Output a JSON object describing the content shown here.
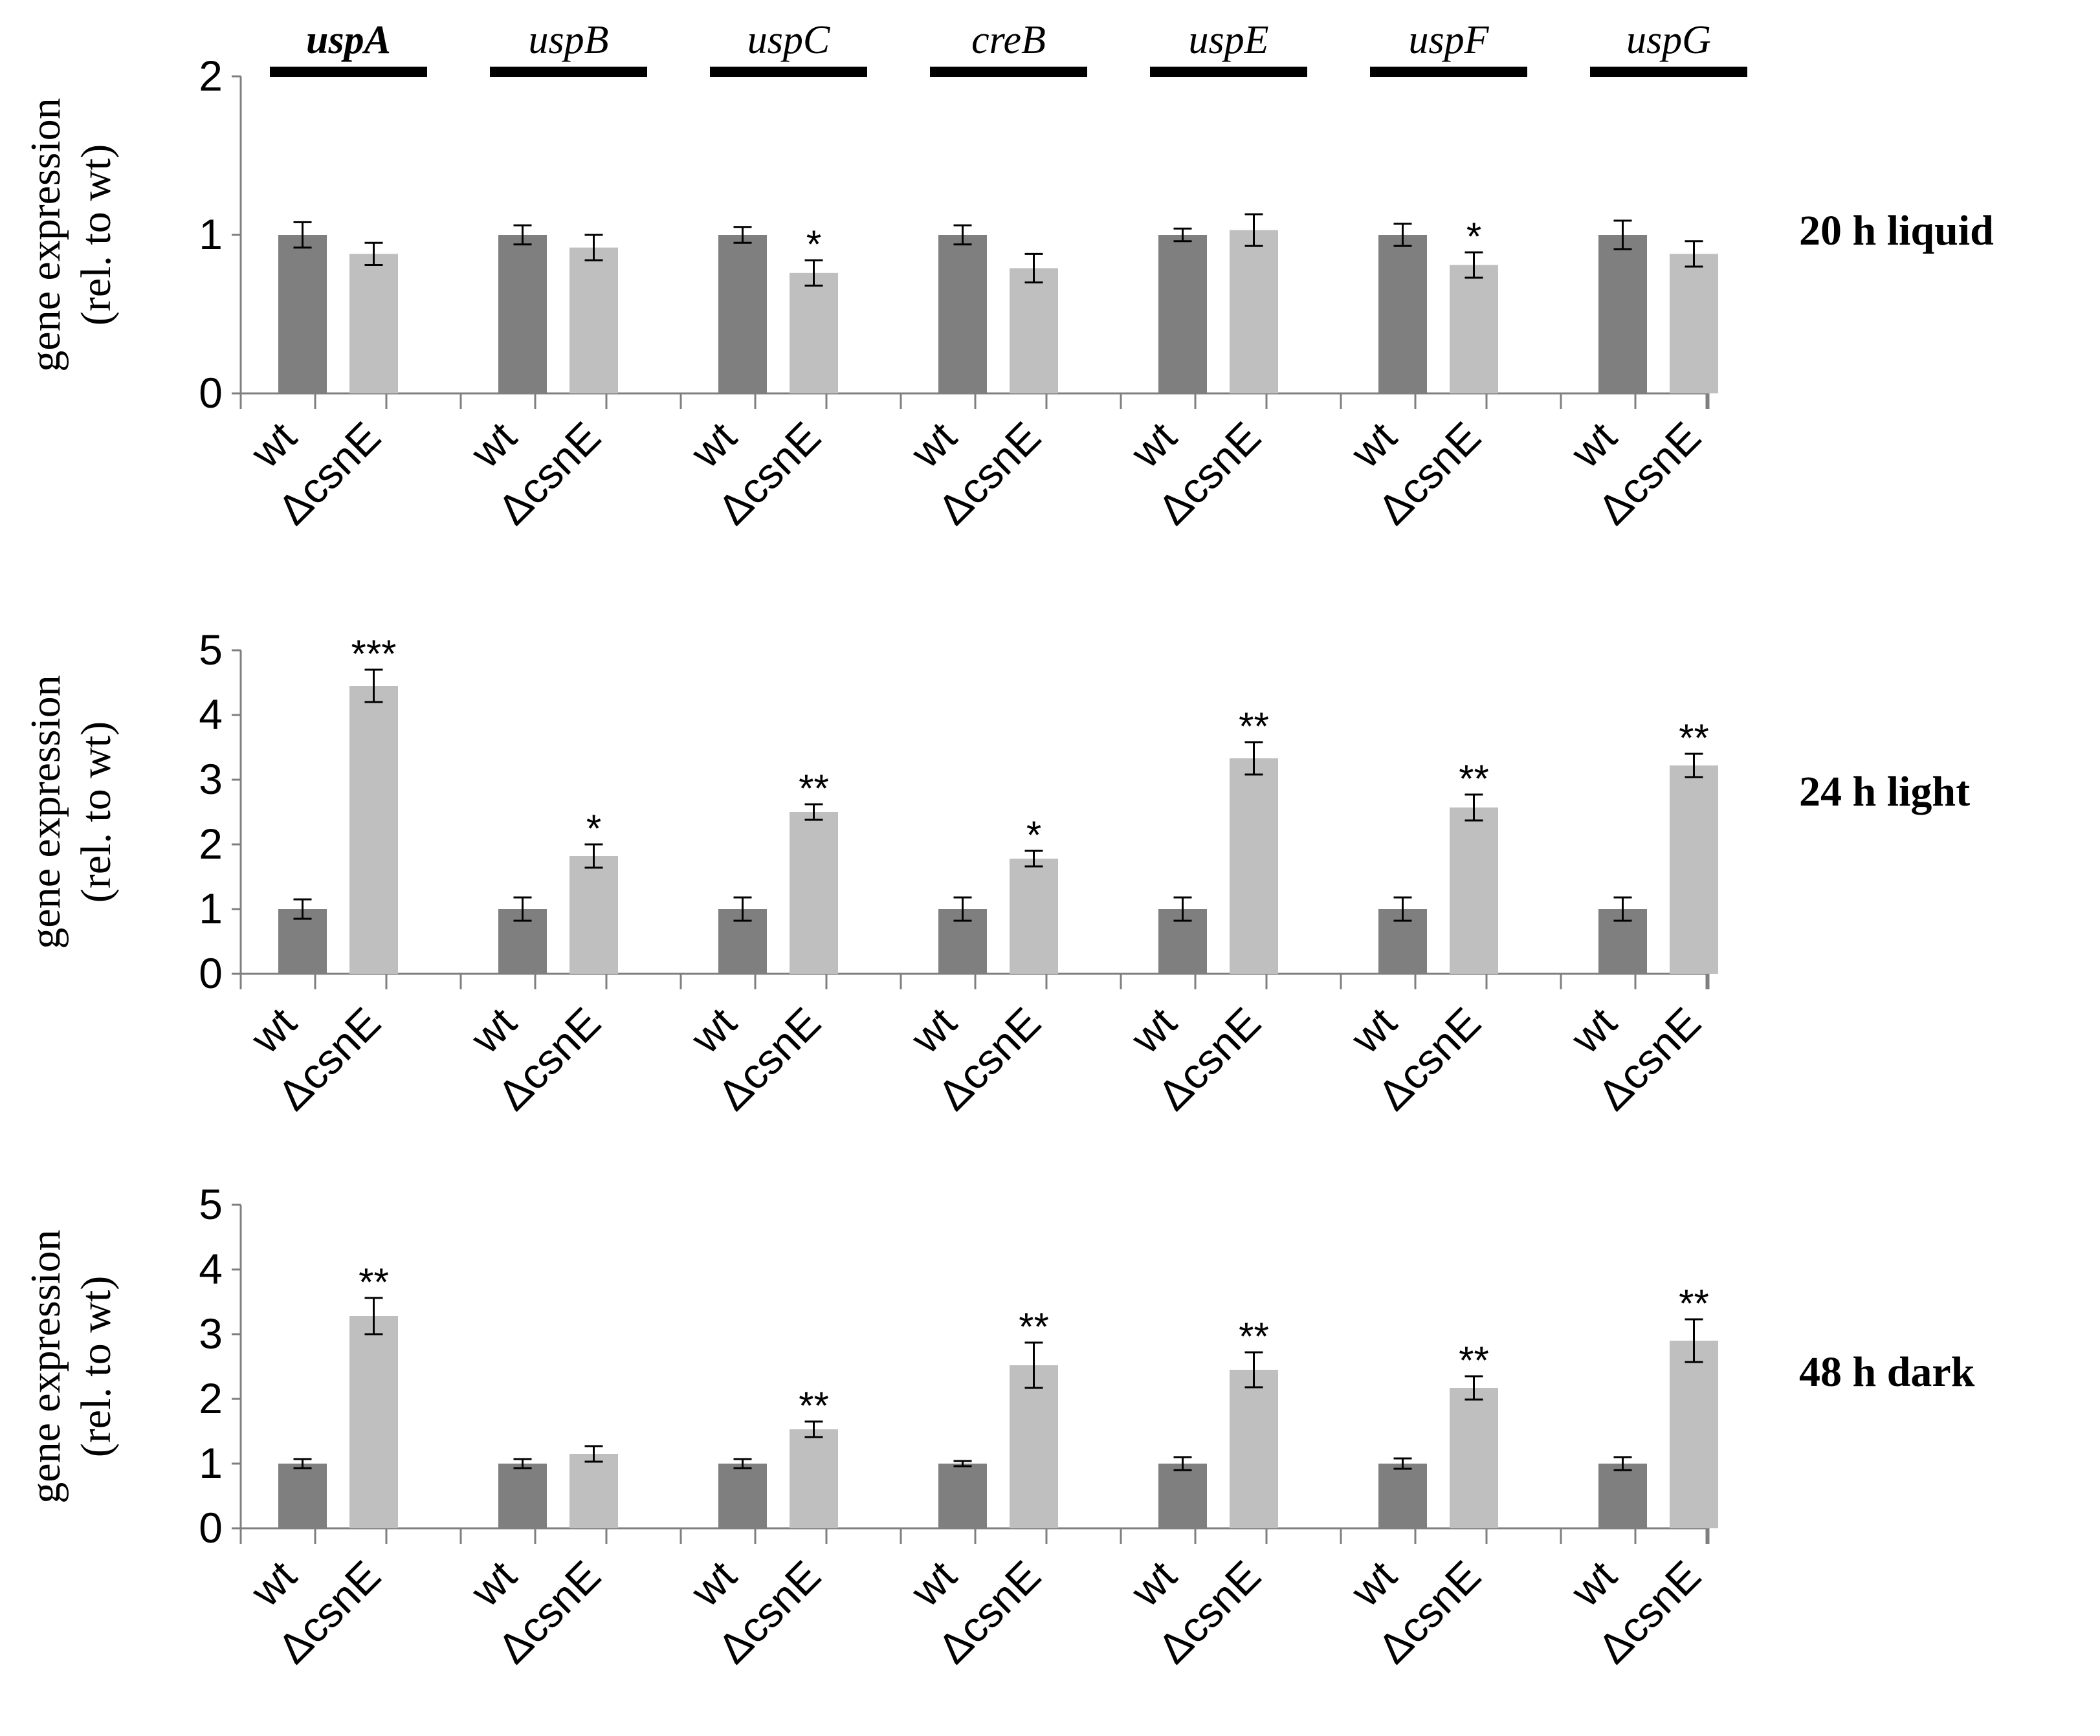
{
  "figure": {
    "y_axis_title_line1": "gene expression",
    "y_axis_title_line2": "(rel. to wt)"
  },
  "chart_data": [
    {
      "type": "bar",
      "title": "20 h liquid",
      "categories": [
        "uspA",
        "uspB",
        "uspC",
        "creB",
        "uspE",
        "uspF",
        "uspG"
      ],
      "category_bold": [
        true,
        false,
        false,
        false,
        false,
        false,
        false
      ],
      "tick_labels": [
        "0",
        "1",
        "2"
      ],
      "ylim": [
        0,
        2
      ],
      "ylabel": "gene expression (rel. to wt)",
      "series": [
        {
          "name": "wt",
          "color": "#7f7f7f",
          "values": [
            1.0,
            1.0,
            1.0,
            1.0,
            1.0,
            1.0,
            1.0
          ],
          "errors": [
            0.08,
            0.06,
            0.05,
            0.06,
            0.04,
            0.07,
            0.09
          ],
          "significance": [
            "",
            "",
            "",
            "",
            "",
            "",
            ""
          ]
        },
        {
          "name": "ΔcsnE",
          "color": "#bfbfbf",
          "values": [
            0.88,
            0.92,
            0.76,
            0.79,
            1.03,
            0.81,
            0.88
          ],
          "errors": [
            0.07,
            0.08,
            0.08,
            0.09,
            0.1,
            0.08,
            0.08
          ],
          "significance": [
            "",
            "",
            "*",
            "",
            "",
            "*",
            ""
          ]
        }
      ]
    },
    {
      "type": "bar",
      "title": "24 h light",
      "categories": [
        "uspA",
        "uspB",
        "uspC",
        "creB",
        "uspE",
        "uspF",
        "uspG"
      ],
      "tick_labels": [
        "0",
        "1",
        "2",
        "3",
        "4",
        "5"
      ],
      "ylim": [
        0,
        5
      ],
      "ylabel": "gene expression (rel. to wt)",
      "series": [
        {
          "name": "wt",
          "color": "#7f7f7f",
          "values": [
            1.0,
            1.0,
            1.0,
            1.0,
            1.0,
            1.0,
            1.0
          ],
          "errors": [
            0.15,
            0.18,
            0.18,
            0.18,
            0.18,
            0.18,
            0.18
          ],
          "significance": [
            "",
            "",
            "",
            "",
            "",
            "",
            ""
          ]
        },
        {
          "name": "ΔcsnE",
          "color": "#bfbfbf",
          "values": [
            4.45,
            1.82,
            2.5,
            1.78,
            3.33,
            2.57,
            3.22
          ],
          "errors": [
            0.25,
            0.18,
            0.12,
            0.12,
            0.25,
            0.2,
            0.18
          ],
          "significance": [
            "***",
            "*",
            "**",
            "*",
            "**",
            "**",
            "**"
          ]
        }
      ]
    },
    {
      "type": "bar",
      "title": "48 h dark",
      "categories": [
        "uspA",
        "uspB",
        "uspC",
        "creB",
        "uspE",
        "uspF",
        "uspG"
      ],
      "tick_labels": [
        "0",
        "1",
        "2",
        "3",
        "4",
        "5"
      ],
      "ylim": [
        0,
        5
      ],
      "ylabel": "gene expression (rel. to wt)",
      "series": [
        {
          "name": "wt",
          "color": "#7f7f7f",
          "values": [
            1.0,
            1.0,
            1.0,
            1.0,
            1.0,
            1.0,
            1.0
          ],
          "errors": [
            0.07,
            0.07,
            0.07,
            0.04,
            0.1,
            0.08,
            0.1
          ],
          "significance": [
            "",
            "",
            "",
            "",
            "",
            "",
            ""
          ]
        },
        {
          "name": "ΔcsnE",
          "color": "#bfbfbf",
          "values": [
            3.28,
            1.15,
            1.53,
            2.52,
            2.45,
            2.17,
            2.9
          ],
          "errors": [
            0.28,
            0.12,
            0.12,
            0.35,
            0.27,
            0.18,
            0.33
          ],
          "significance": [
            "**",
            "",
            "**",
            "**",
            "**",
            "**",
            "**"
          ]
        }
      ]
    }
  ]
}
